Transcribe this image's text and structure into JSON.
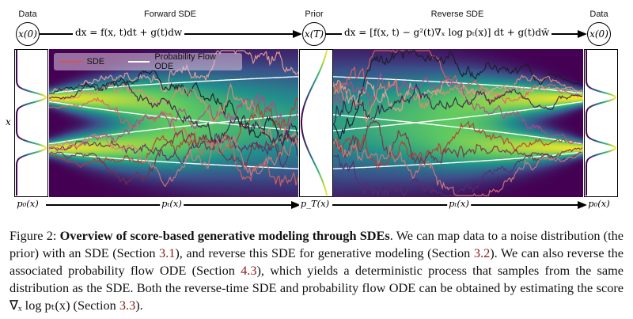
{
  "header": {
    "left_label": "Data",
    "forward_label": "Forward SDE",
    "prior_label": "Prior",
    "reverse_label": "Reverse SDE",
    "right_label": "Data",
    "node_start": "x(0)",
    "node_prior": "x(T)",
    "node_end": "x(0)",
    "forward_eq": "dx = f(x, t)dt + g(t)dw",
    "reverse_eq": "dx = [f(x, t) − g²(t)∇ₓ log pₜ(x)] dt + g(t)dw̄"
  },
  "axis": {
    "y_label": "x"
  },
  "legend": {
    "items": [
      {
        "label": "SDE",
        "color": "#d9534f"
      },
      {
        "label": "Probability Flow ODE",
        "color": "#ffffff"
      }
    ]
  },
  "bottom": {
    "p0_left": "p₀(x)",
    "pt_forward": "pₜ(x)",
    "pT": "p_T(x)",
    "pt_reverse": "pₜ(x)",
    "p0_right": "p₀(x)"
  },
  "colors": {
    "colormap": "viridis",
    "ref_link": "#8b1a1a"
  },
  "caption": {
    "fig_label": "Figure 2: ",
    "bold_title": "Overview of score-based generative modeling through SDEs",
    "t1": ". We can map data to a noise distribution (the prior) with an SDE (Section ",
    "r1": "3.1",
    "t2": "), and reverse this SDE for generative modeling (Section ",
    "r2": "3.2",
    "t3": "). We can also reverse the associated probability flow ODE (Section ",
    "r3": "4.3",
    "t4": "), which yields a deterministic process that samples from the same distribution as the SDE. Both the reverse-time SDE and probability flow ODE can be obtained by estimating the score ∇ₓ log pₜ(x) (Section ",
    "r4": "3.3",
    "t5": ")."
  }
}
